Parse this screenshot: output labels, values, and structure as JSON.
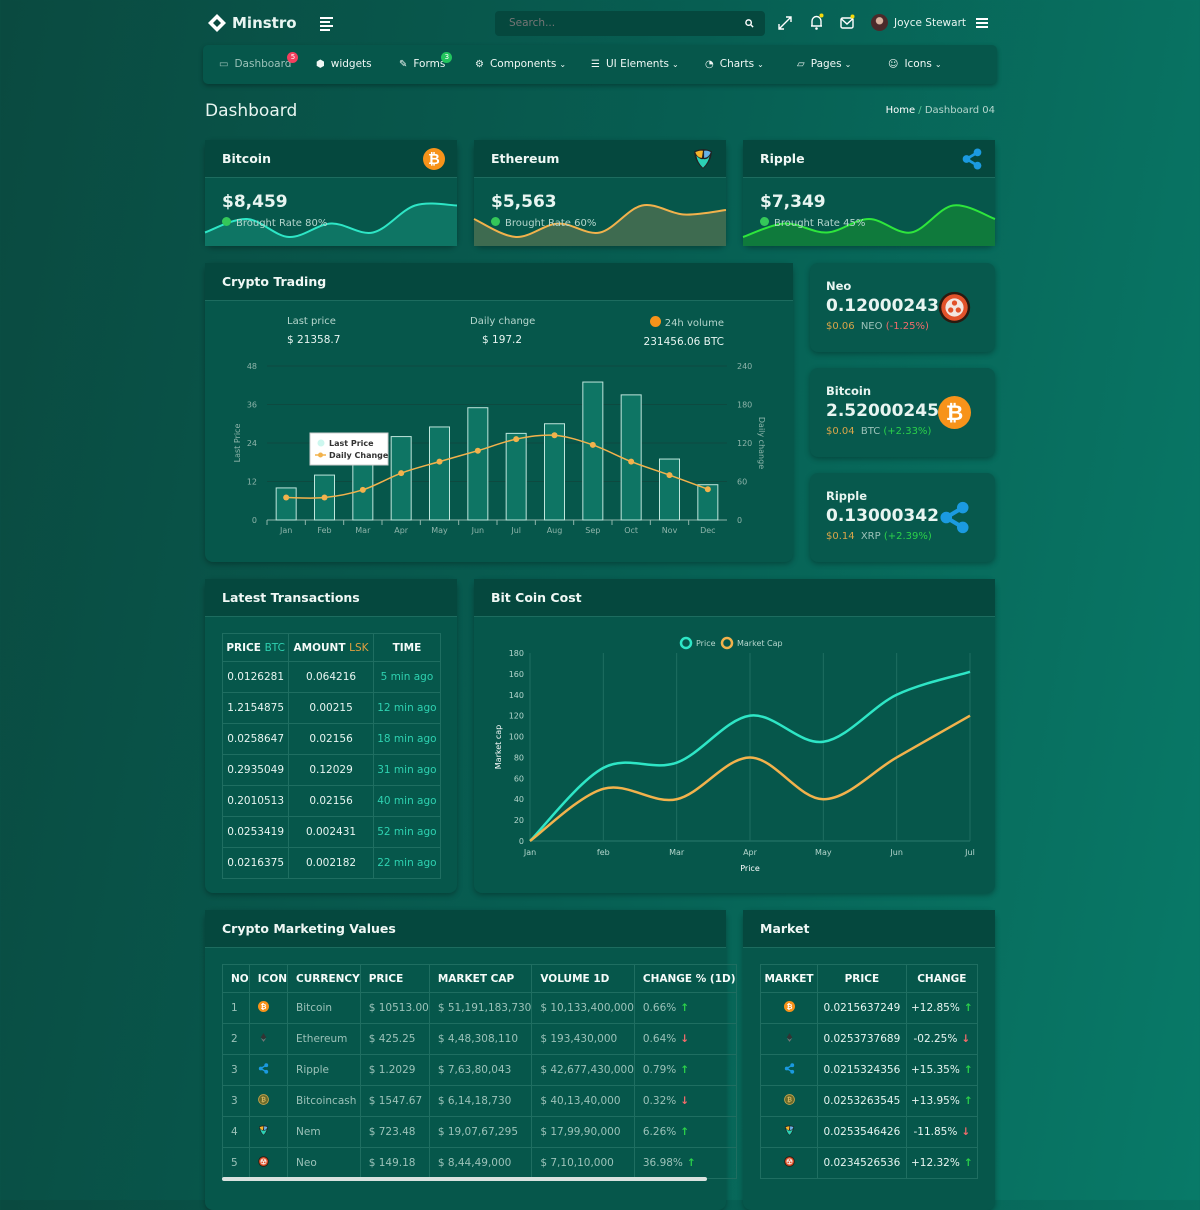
{
  "header": {
    "brand": "Minstro",
    "search_placeholder": "Search...",
    "user_name": "Joyce Stewart"
  },
  "nav": [
    {
      "label": "Dashboard",
      "badge": "5",
      "badge_color": "#f43f5e"
    },
    {
      "label": "widgets"
    },
    {
      "label": "Forms",
      "badge": "3",
      "badge_color": "#22c55e"
    },
    {
      "label": "Components",
      "caret": true
    },
    {
      "label": "UI Elements",
      "caret": true
    },
    {
      "label": "Charts",
      "caret": true
    },
    {
      "label": "Pages",
      "caret": true
    },
    {
      "label": "Icons",
      "caret": true
    }
  ],
  "page": {
    "title": "Dashboard",
    "breadcrumb_home": "Home",
    "breadcrumb_current": "Dashboard 04"
  },
  "top_cards": [
    {
      "name": "Bitcoin",
      "value": "$8,459",
      "rate": "Brought Rate 80%",
      "color": "#2ee6c6",
      "fill": "#0e7564",
      "spark": [
        3,
        6,
        2,
        5,
        3,
        9,
        9
      ]
    },
    {
      "name": "Ethereum",
      "value": "$5,563",
      "rate": "Brought Rate 60%",
      "color": "#f2b24c",
      "fill": "#3e6b50",
      "spark": [
        6,
        2,
        5,
        3,
        9,
        7,
        8
      ]
    },
    {
      "name": "Ripple",
      "value": "$7,349",
      "rate": "Brought Rate 45%",
      "color": "#2ee63c",
      "fill": "#0f7a3c",
      "spark": [
        2,
        5,
        3,
        6,
        3,
        9,
        6
      ]
    }
  ],
  "trading": {
    "title": "Crypto Trading",
    "stats": [
      {
        "label": "Last price",
        "value": "$ 21358.7"
      },
      {
        "label": "Daily change",
        "value": "$ 197.2"
      },
      {
        "label": "24h volume",
        "value": "231456.06 BTC"
      }
    ]
  },
  "chart_data": [
    {
      "type": "bar",
      "categories": [
        "Jan",
        "Feb",
        "Mar",
        "Apr",
        "May",
        "Jun",
        "Jul",
        "Aug",
        "Sep",
        "Oct",
        "Nov",
        "Dec"
      ],
      "ylabel": "Last Price",
      "y2label": "Daily change",
      "ylim": [
        0,
        48
      ],
      "y2lim": [
        0,
        240
      ],
      "yticks": [
        0,
        12,
        24,
        36,
        48
      ],
      "y2ticks": [
        0,
        60,
        120,
        180,
        240
      ],
      "legend": "top-left",
      "series": [
        {
          "name": "Last Price",
          "type": "bar",
          "axis": "left",
          "color": "#0e7564",
          "values": [
            10,
            14,
            18,
            26,
            29,
            35,
            27,
            30,
            43,
            39,
            19,
            11
          ]
        },
        {
          "name": "Daily Change",
          "type": "line",
          "axis": "right",
          "color": "#f2b24c",
          "values": [
            35,
            35,
            47,
            73,
            91,
            108,
            126,
            132,
            117,
            91,
            70,
            48
          ]
        }
      ]
    },
    {
      "type": "line",
      "title": "Bit Coin Cost",
      "categories": [
        "Jan",
        "feb",
        "Mar",
        "Apr",
        "May",
        "Jun",
        "Jul"
      ],
      "xlabel": "Price",
      "ylabel": "Market cap",
      "ylim": [
        0,
        180
      ],
      "yticks": [
        0,
        20,
        40,
        60,
        80,
        100,
        120,
        140,
        160,
        180
      ],
      "legend": "top",
      "grid": true,
      "series": [
        {
          "name": "Price",
          "color": "#2ee6c6",
          "values": [
            0,
            70,
            75,
            120,
            95,
            140,
            162
          ]
        },
        {
          "name": "Market Cap",
          "color": "#f2b24c",
          "values": [
            0,
            50,
            40,
            80,
            40,
            80,
            120
          ]
        }
      ]
    }
  ],
  "side_cards": [
    {
      "name": "Neo",
      "value": "0.12000243",
      "usd": "$0.06",
      "sym": "NEO",
      "change": "(-1.25%)",
      "dir": "down",
      "icon": "neo"
    },
    {
      "name": "Bitcoin",
      "value": "2.52000245",
      "usd": "$0.04",
      "sym": "BTC",
      "change": "(+2.33%)",
      "dir": "up",
      "icon": "btc"
    },
    {
      "name": "Ripple",
      "value": "0.13000342",
      "usd": "$0.14",
      "sym": "XRP",
      "change": "(+2.39%)",
      "dir": "up",
      "icon": "xrp"
    }
  ],
  "transactions": {
    "title": "Latest Transactions",
    "headers": [
      {
        "a": "PRICE",
        "b": "BTC"
      },
      {
        "a": "AMOUNT",
        "b": "LSK"
      },
      {
        "a": "TIME",
        "b": ""
      }
    ],
    "rows": [
      [
        "0.0126281",
        "0.064216",
        "5 min ago"
      ],
      [
        "1.2154875",
        "0.00215",
        "12 min ago"
      ],
      [
        "0.0258647",
        "0.02156",
        "18 min ago"
      ],
      [
        "0.2935049",
        "0.12029",
        "31 min ago"
      ],
      [
        "0.2010513",
        "0.02156",
        "40 min ago"
      ],
      [
        "0.0253419",
        "0.002431",
        "52 min ago"
      ],
      [
        "0.0216375",
        "0.002182",
        "22 min ago"
      ]
    ]
  },
  "marketing": {
    "title": "Crypto Marketing Values",
    "headers": [
      "NO",
      "ICON",
      "CURRENCY",
      "PRICE",
      "MARKET CAP",
      "VOLUME 1D",
      "CHANGE % (1D)"
    ],
    "rows": [
      {
        "no": "1",
        "icon": "btc",
        "currency": "Bitcoin",
        "price": "$ 10513.00",
        "cap": "$ 51,191,183,730",
        "vol": "$ 10,133,400,000",
        "change": "0.66%",
        "dir": "up"
      },
      {
        "no": "2",
        "icon": "eth",
        "currency": "Ethereum",
        "price": "$ 425.25",
        "cap": "$ 4,48,308,110",
        "vol": "$ 193,430,000",
        "change": "0.64%",
        "dir": "down"
      },
      {
        "no": "3",
        "icon": "xrp",
        "currency": "Ripple",
        "price": "$ 1.2029",
        "cap": "$ 7,63,80,043",
        "vol": "$ 42,677,430,000",
        "change": "0.79%",
        "dir": "up"
      },
      {
        "no": "3",
        "icon": "bch",
        "currency": "Bitcoincash",
        "price": "$ 1547.67",
        "cap": "$ 6,14,18,730",
        "vol": "$ 40,13,40,000",
        "change": "0.32%",
        "dir": "down"
      },
      {
        "no": "4",
        "icon": "nem",
        "currency": "Nem",
        "price": "$ 723.48",
        "cap": "$ 19,07,67,295",
        "vol": "$ 17,99,90,000",
        "change": "6.26%",
        "dir": "up"
      },
      {
        "no": "5",
        "icon": "neo",
        "currency": "Neo",
        "price": "$ 149.18",
        "cap": "$ 8,44,49,000",
        "vol": "$ 7,10,10,000",
        "change": "36.98%",
        "dir": "up"
      }
    ]
  },
  "market": {
    "title": "Market",
    "headers": [
      "MARKET",
      "PRICE",
      "CHANGE"
    ],
    "rows": [
      {
        "icon": "btc",
        "price": "0.0215637249",
        "change": "+12.85%",
        "dir": "up"
      },
      {
        "icon": "eth",
        "price": "0.0253737689",
        "change": "-02.25%",
        "dir": "down"
      },
      {
        "icon": "xrp",
        "price": "0.0215324356",
        "change": "+15.35%",
        "dir": "up"
      },
      {
        "icon": "bch",
        "price": "0.0253263545",
        "change": "+13.95%",
        "dir": "up"
      },
      {
        "icon": "nem",
        "price": "0.0253546426",
        "change": "-11.85%",
        "dir": "down"
      },
      {
        "icon": "neo",
        "price": "0.0234526536",
        "change": "+12.32%",
        "dir": "up"
      }
    ]
  }
}
